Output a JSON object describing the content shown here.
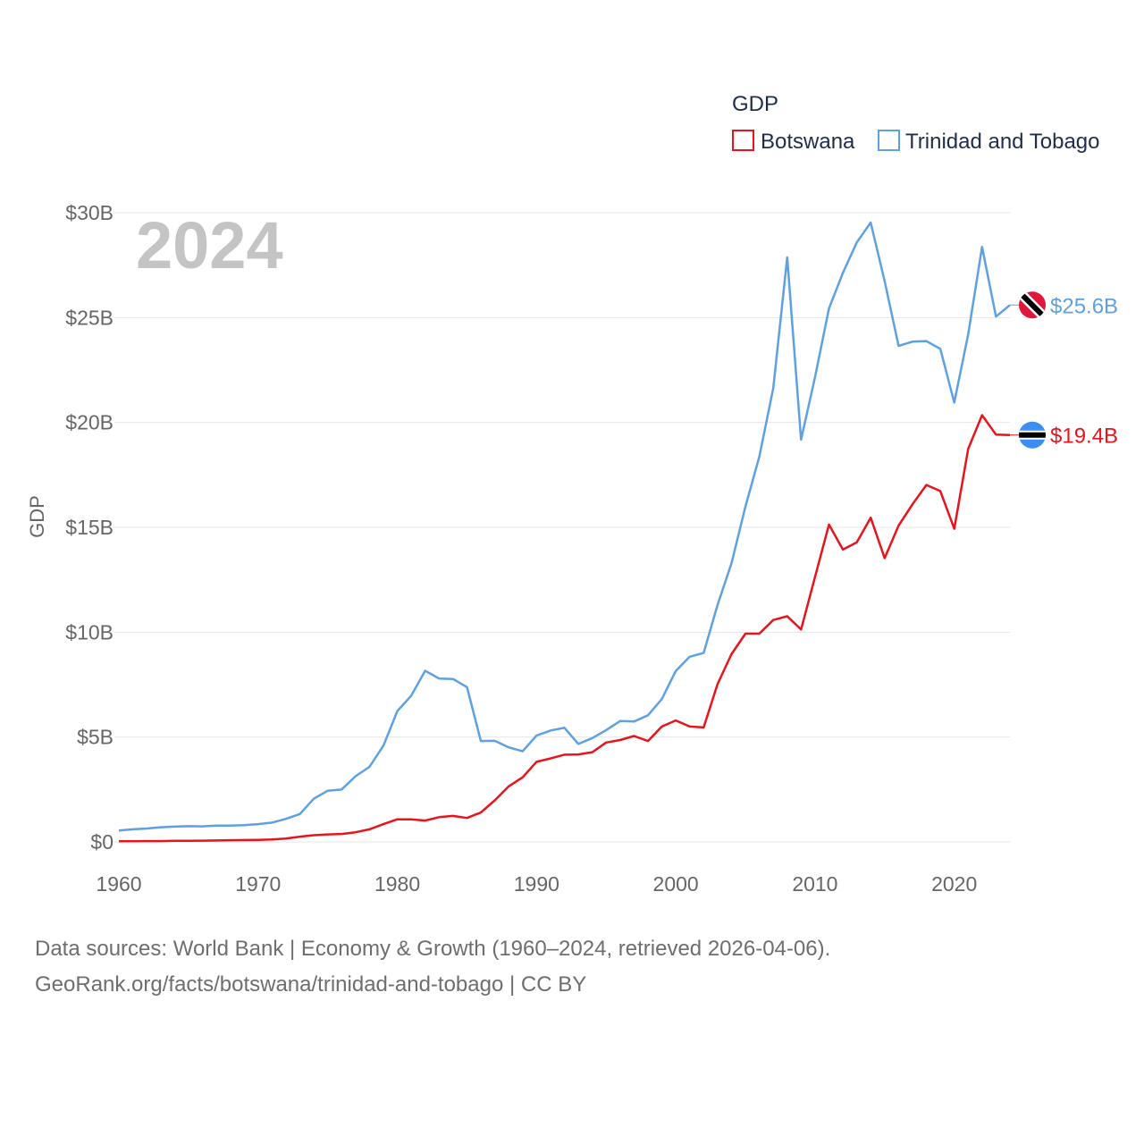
{
  "chart_data": {
    "type": "line",
    "year_label": "2024",
    "legend_title": "GDP",
    "ylabel": "GDP",
    "xlim": [
      1960,
      2024
    ],
    "ylim": [
      0,
      30
    ],
    "x_ticks": [
      1960,
      1970,
      1980,
      1990,
      2000,
      2010,
      2020
    ],
    "x_tick_labels": [
      "1960",
      "1970",
      "1980",
      "1990",
      "2000",
      "2010",
      "2020"
    ],
    "y_ticks": [
      0,
      5,
      10,
      15,
      20,
      25,
      30
    ],
    "y_tick_labels": [
      "$0",
      "$5B",
      "$10B",
      "$15B",
      "$20B",
      "$25B",
      "$30B"
    ],
    "x": [
      1960,
      1961,
      1962,
      1963,
      1964,
      1965,
      1966,
      1967,
      1968,
      1969,
      1970,
      1971,
      1972,
      1973,
      1974,
      1975,
      1976,
      1977,
      1978,
      1979,
      1980,
      1981,
      1982,
      1983,
      1984,
      1985,
      1986,
      1987,
      1988,
      1989,
      1990,
      1991,
      1992,
      1993,
      1994,
      1995,
      1996,
      1997,
      1998,
      1999,
      2000,
      2001,
      2002,
      2003,
      2004,
      2005,
      2006,
      2007,
      2008,
      2009,
      2010,
      2011,
      2012,
      2013,
      2014,
      2015,
      2016,
      2017,
      2018,
      2019,
      2020,
      2021,
      2022,
      2023,
      2024
    ],
    "series": [
      {
        "name": "Botswana",
        "color": "#e8141c",
        "end_label": "$19.4B",
        "flag": "botswana",
        "values": [
          0.03,
          0.03,
          0.04,
          0.04,
          0.05,
          0.05,
          0.06,
          0.07,
          0.08,
          0.09,
          0.1,
          0.12,
          0.16,
          0.25,
          0.32,
          0.36,
          0.38,
          0.46,
          0.6,
          0.85,
          1.08,
          1.08,
          1.02,
          1.18,
          1.24,
          1.14,
          1.4,
          1.98,
          2.65,
          3.08,
          3.82,
          3.98,
          4.16,
          4.17,
          4.28,
          4.74,
          4.86,
          5.05,
          4.81,
          5.5,
          5.79,
          5.5,
          5.46,
          7.53,
          8.95,
          9.93,
          9.93,
          10.58,
          10.76,
          10.13,
          12.63,
          15.13,
          13.94,
          14.28,
          15.46,
          13.53,
          15.08,
          16.1,
          17.02,
          16.73,
          14.93,
          18.74,
          20.35,
          19.42,
          19.4
        ]
      },
      {
        "name": "Trinidad and Tobago",
        "color": "#5da1e3",
        "end_label": "$25.6B",
        "flag": "trinidad-and-tobago",
        "values": [
          0.54,
          0.6,
          0.64,
          0.7,
          0.73,
          0.75,
          0.74,
          0.78,
          0.78,
          0.8,
          0.85,
          0.92,
          1.1,
          1.33,
          2.06,
          2.44,
          2.5,
          3.13,
          3.58,
          4.59,
          6.24,
          6.97,
          8.16,
          7.79,
          7.77,
          7.38,
          4.81,
          4.82,
          4.51,
          4.32,
          5.07,
          5.31,
          5.44,
          4.67,
          4.95,
          5.33,
          5.76,
          5.74,
          6.04,
          6.81,
          8.15,
          8.83,
          9.01,
          11.31,
          13.28,
          15.98,
          18.37,
          21.64,
          27.87,
          19.18,
          22.16,
          25.43,
          27.13,
          28.58,
          29.53,
          26.74,
          23.65,
          23.85,
          23.88,
          23.51,
          20.95,
          24.2,
          28.37,
          25.05,
          25.6
        ]
      }
    ]
  },
  "source": {
    "line1": "Data sources: World Bank | Economy & Growth (1960–2024, retrieved 2026-04-06).",
    "line2": "GeoRank.org/facts/botswana/trinidad-and-tobago | CC BY"
  }
}
